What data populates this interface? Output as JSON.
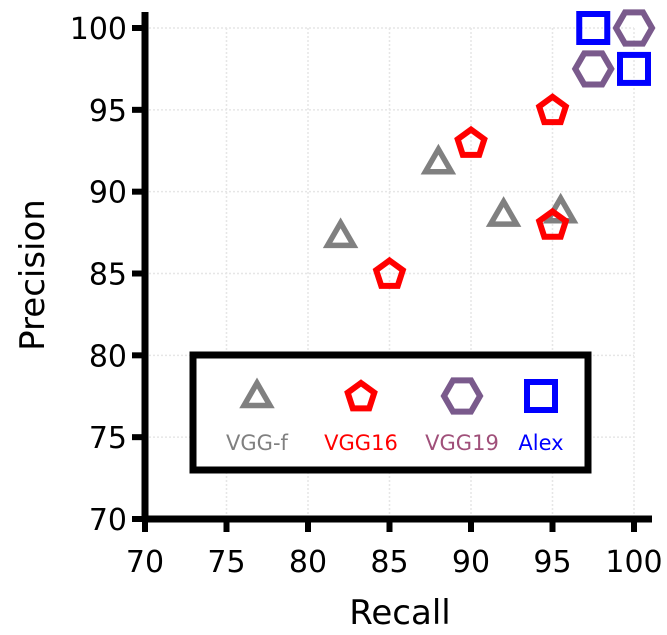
{
  "chart_data": {
    "type": "scatter",
    "xlabel": "Recall",
    "ylabel": "Precision",
    "xlim": [
      70,
      100
    ],
    "ylim": [
      70,
      100
    ],
    "xticks": [
      70,
      75,
      80,
      85,
      90,
      95,
      100
    ],
    "yticks": [
      70,
      75,
      80,
      85,
      90,
      95,
      100
    ],
    "grid": true,
    "legend_position": "bottom-center",
    "series": [
      {
        "name": "VGG-f",
        "marker": "triangle",
        "color": "#808080",
        "points": [
          {
            "x": 82,
            "y": 87.3
          },
          {
            "x": 88,
            "y": 91.8
          },
          {
            "x": 92,
            "y": 88.6
          },
          {
            "x": 95.5,
            "y": 88.8
          }
        ]
      },
      {
        "name": "VGG16",
        "marker": "pentagon",
        "color": "#ff0000",
        "points": [
          {
            "x": 85,
            "y": 85
          },
          {
            "x": 90,
            "y": 93
          },
          {
            "x": 95,
            "y": 95
          },
          {
            "x": 95,
            "y": 88
          }
        ]
      },
      {
        "name": "VGG19",
        "marker": "hexagon",
        "color": "#7a5a8c",
        "label_color": "#a0507a",
        "points": [
          {
            "x": 100,
            "y": 100
          },
          {
            "x": 97.5,
            "y": 97.5
          }
        ]
      },
      {
        "name": "Alex",
        "marker": "square",
        "color": "#0000ff",
        "points": [
          {
            "x": 97.5,
            "y": 100
          },
          {
            "x": 100,
            "y": 97.5
          }
        ]
      }
    ]
  }
}
